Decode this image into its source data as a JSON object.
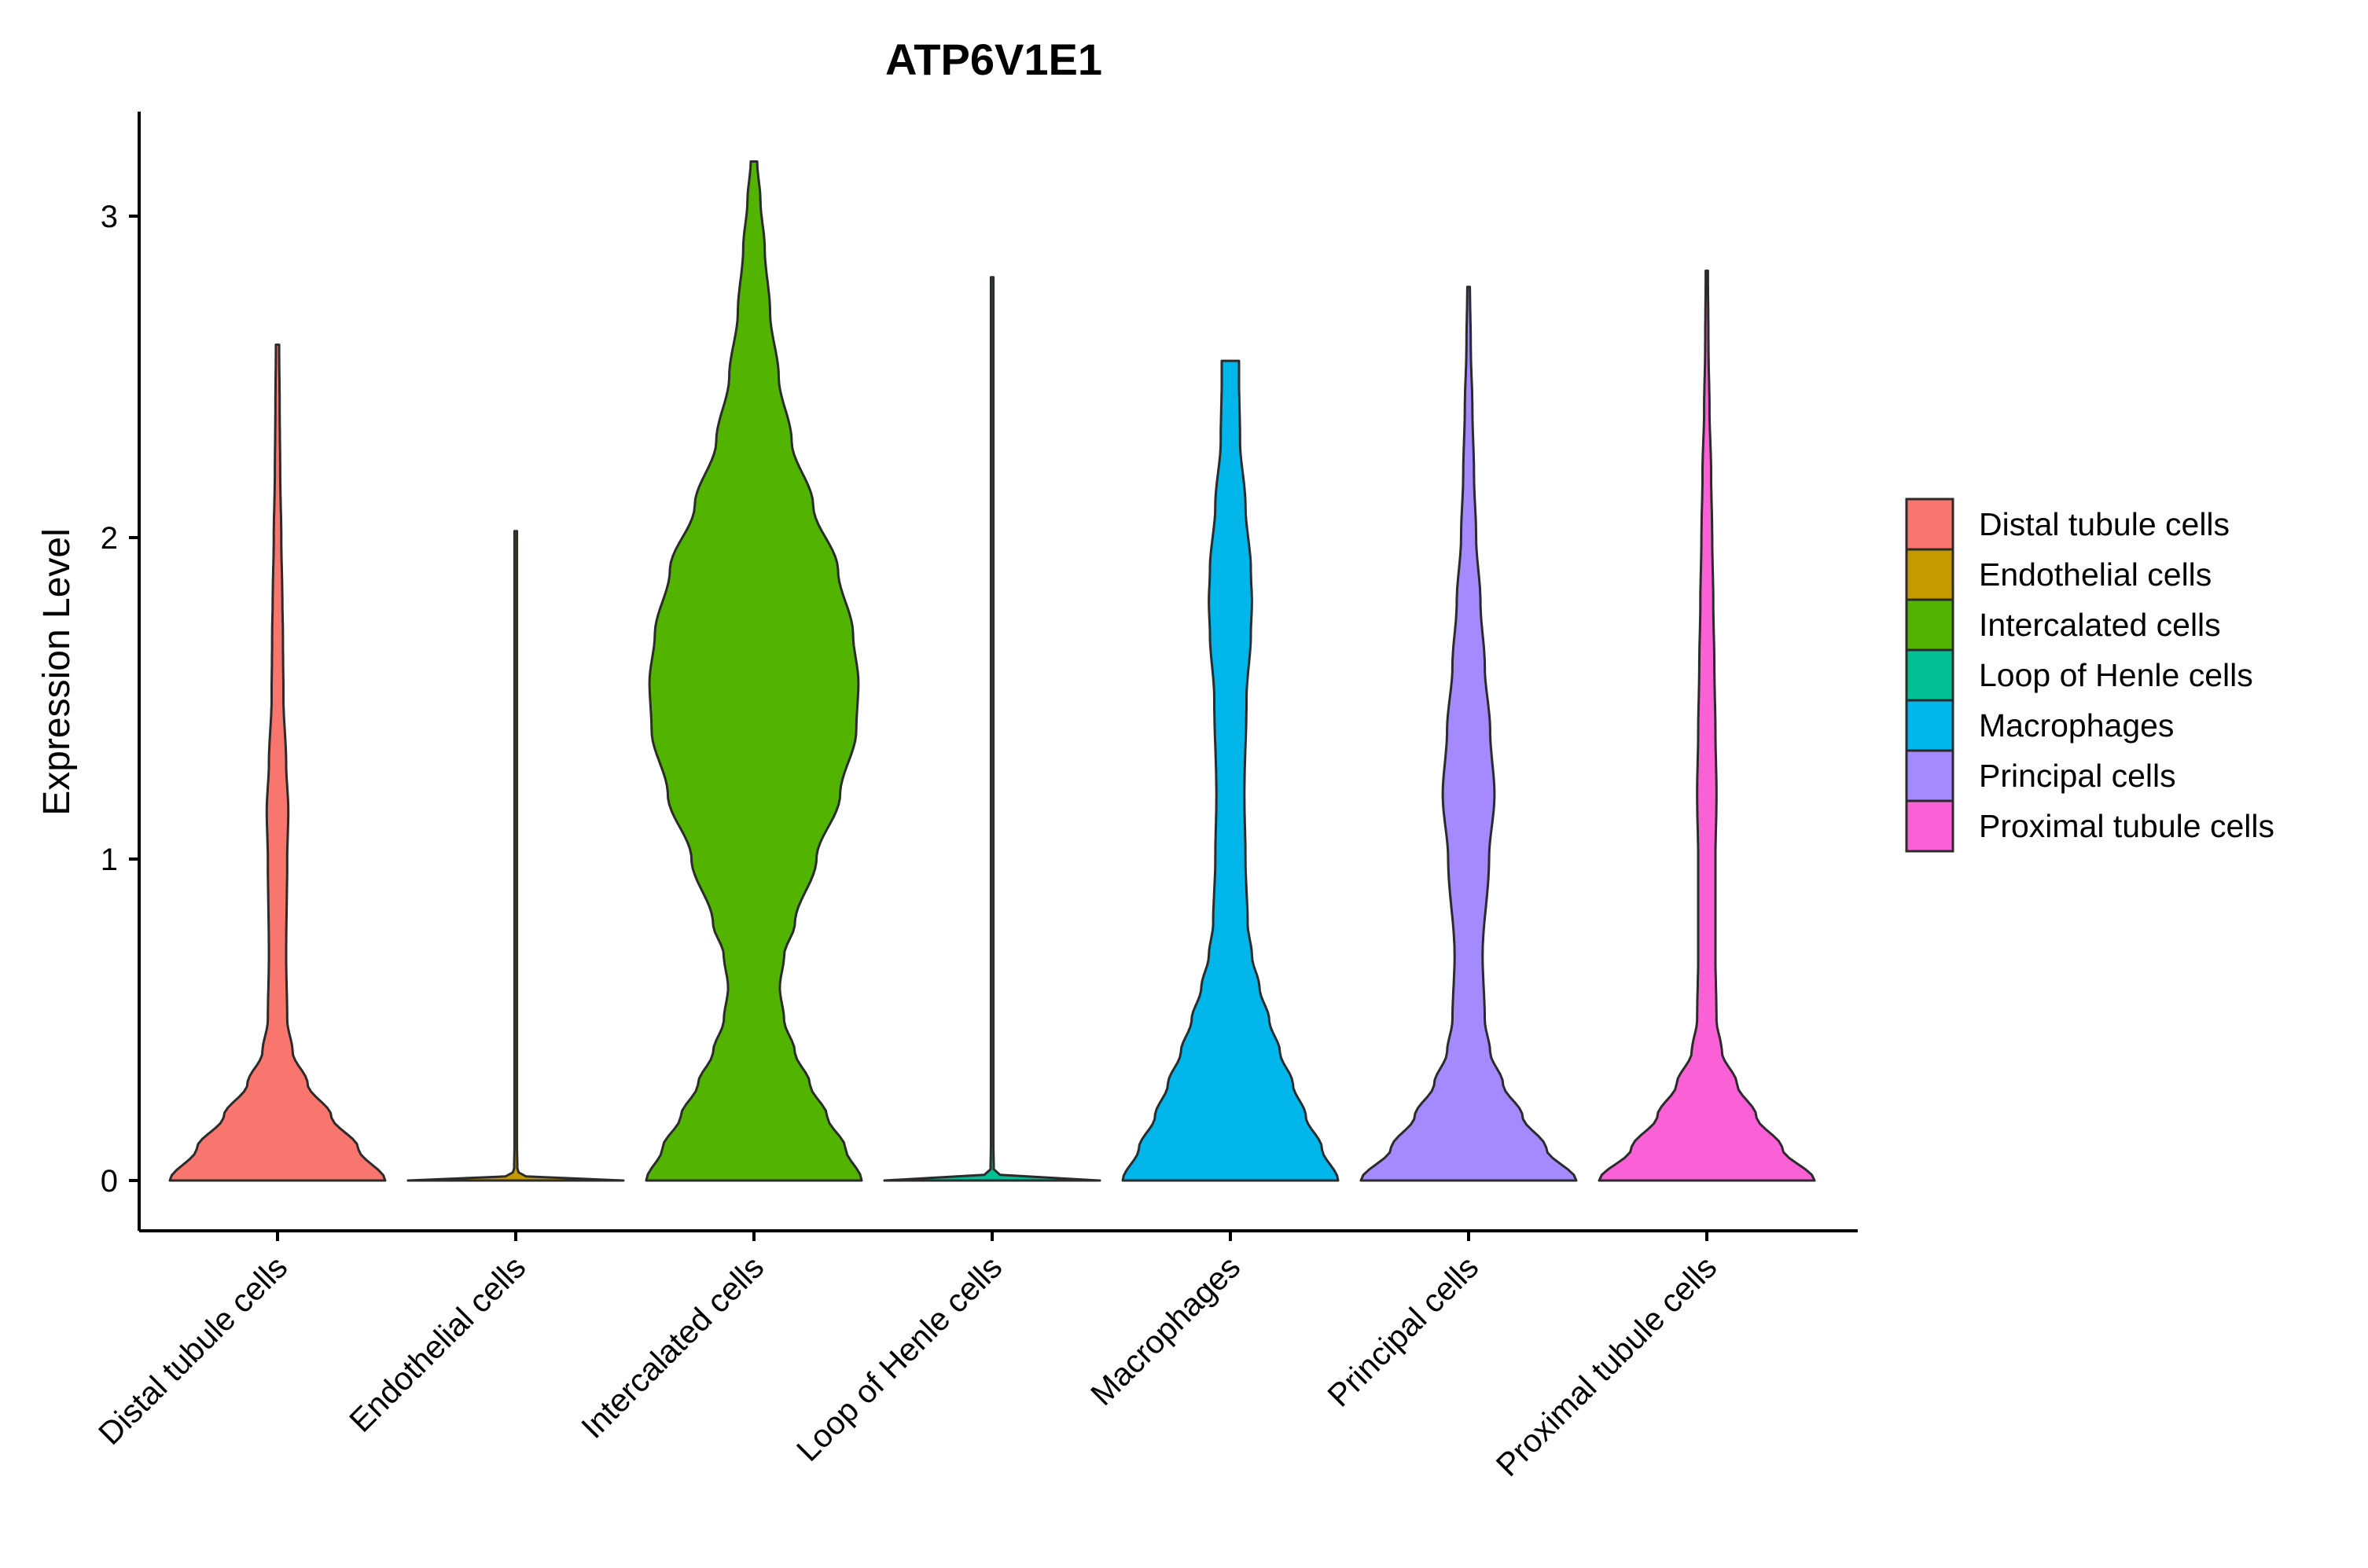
{
  "chart_data": {
    "type": "violin",
    "title": "ATP6V1E1",
    "xlabel": "",
    "ylabel": "Expression Level",
    "ylim": [
      -0.15,
      3.3
    ],
    "yticks": [
      0,
      1,
      2,
      3
    ],
    "grid": false,
    "legend_position": "right",
    "categories": [
      "Distal tubule cells",
      "Endothelial cells",
      "Intercalated cells",
      "Loop of Henle cells",
      "Macrophages",
      "Principal cells",
      "Proximal tubule cells"
    ],
    "series": [
      {
        "name": "Distal tubule cells",
        "color": "#F8766D",
        "max": 2.6,
        "density": [
          [
            0,
            1.0
          ],
          [
            0.1,
            0.75
          ],
          [
            0.2,
            0.5
          ],
          [
            0.3,
            0.28
          ],
          [
            0.4,
            0.14
          ],
          [
            0.5,
            0.09
          ],
          [
            0.7,
            0.08
          ],
          [
            1.0,
            0.09
          ],
          [
            1.15,
            0.1
          ],
          [
            1.3,
            0.08
          ],
          [
            1.5,
            0.055
          ],
          [
            1.7,
            0.05
          ],
          [
            1.8,
            0.045
          ],
          [
            2.0,
            0.035
          ],
          [
            2.2,
            0.025
          ],
          [
            2.4,
            0.02
          ],
          [
            2.6,
            0.015
          ]
        ]
      },
      {
        "name": "Endothelial cells",
        "color": "#C49A00",
        "max": 2.02,
        "density": [
          [
            0,
            1.0
          ],
          [
            0.01,
            0.1
          ],
          [
            0.03,
            0.015
          ],
          [
            0.1,
            0.012
          ],
          [
            1.0,
            0.012
          ],
          [
            2.02,
            0.012
          ]
        ]
      },
      {
        "name": "Intercalated cells",
        "color": "#53B400",
        "max": 3.17,
        "density": [
          [
            0,
            1.0
          ],
          [
            0.1,
            0.85
          ],
          [
            0.2,
            0.68
          ],
          [
            0.3,
            0.52
          ],
          [
            0.4,
            0.38
          ],
          [
            0.5,
            0.28
          ],
          [
            0.6,
            0.24
          ],
          [
            0.7,
            0.28
          ],
          [
            0.8,
            0.38
          ],
          [
            1.0,
            0.58
          ],
          [
            1.2,
            0.8
          ],
          [
            1.4,
            0.95
          ],
          [
            1.55,
            0.97
          ],
          [
            1.7,
            0.92
          ],
          [
            1.9,
            0.78
          ],
          [
            2.1,
            0.55
          ],
          [
            2.3,
            0.35
          ],
          [
            2.5,
            0.23
          ],
          [
            2.7,
            0.15
          ],
          [
            2.9,
            0.1
          ],
          [
            3.05,
            0.06
          ],
          [
            3.17,
            0.03
          ]
        ]
      },
      {
        "name": "Loop of Henle cells",
        "color": "#00C094",
        "max": 2.81,
        "density": [
          [
            0,
            1.0
          ],
          [
            0.01,
            0.1
          ],
          [
            0.03,
            0.015
          ],
          [
            0.1,
            0.012
          ],
          [
            1.0,
            0.012
          ],
          [
            2.81,
            0.012
          ]
        ]
      },
      {
        "name": "Macrophages",
        "color": "#00B6EB",
        "max": 2.55,
        "density": [
          [
            0,
            1.0
          ],
          [
            0.1,
            0.85
          ],
          [
            0.2,
            0.7
          ],
          [
            0.3,
            0.58
          ],
          [
            0.4,
            0.46
          ],
          [
            0.5,
            0.36
          ],
          [
            0.6,
            0.27
          ],
          [
            0.7,
            0.2
          ],
          [
            0.8,
            0.16
          ],
          [
            1.0,
            0.14
          ],
          [
            1.2,
            0.13
          ],
          [
            1.5,
            0.15
          ],
          [
            1.7,
            0.19
          ],
          [
            1.8,
            0.2
          ],
          [
            1.9,
            0.19
          ],
          [
            2.1,
            0.14
          ],
          [
            2.3,
            0.09
          ],
          [
            2.5,
            0.08
          ],
          [
            2.55,
            0.08
          ]
        ]
      },
      {
        "name": "Principal cells",
        "color": "#A58AFF",
        "max": 2.78,
        "density": [
          [
            0,
            1.0
          ],
          [
            0.1,
            0.72
          ],
          [
            0.2,
            0.5
          ],
          [
            0.3,
            0.32
          ],
          [
            0.4,
            0.2
          ],
          [
            0.5,
            0.15
          ],
          [
            0.7,
            0.13
          ],
          [
            1.0,
            0.19
          ],
          [
            1.2,
            0.24
          ],
          [
            1.4,
            0.2
          ],
          [
            1.6,
            0.15
          ],
          [
            1.8,
            0.11
          ],
          [
            2.0,
            0.07
          ],
          [
            2.2,
            0.05
          ],
          [
            2.4,
            0.035
          ],
          [
            2.6,
            0.02
          ],
          [
            2.78,
            0.012
          ]
        ]
      },
      {
        "name": "Proximal tubule cells",
        "color": "#FB61D7",
        "max": 2.83,
        "density": [
          [
            0,
            1.0
          ],
          [
            0.1,
            0.7
          ],
          [
            0.2,
            0.46
          ],
          [
            0.3,
            0.28
          ],
          [
            0.4,
            0.14
          ],
          [
            0.5,
            0.09
          ],
          [
            0.7,
            0.08
          ],
          [
            1.0,
            0.08
          ],
          [
            1.2,
            0.09
          ],
          [
            1.4,
            0.08
          ],
          [
            1.6,
            0.07
          ],
          [
            1.8,
            0.06
          ],
          [
            2.0,
            0.05
          ],
          [
            2.2,
            0.04
          ],
          [
            2.4,
            0.025
          ],
          [
            2.6,
            0.015
          ],
          [
            2.83,
            0.01
          ]
        ]
      }
    ]
  }
}
